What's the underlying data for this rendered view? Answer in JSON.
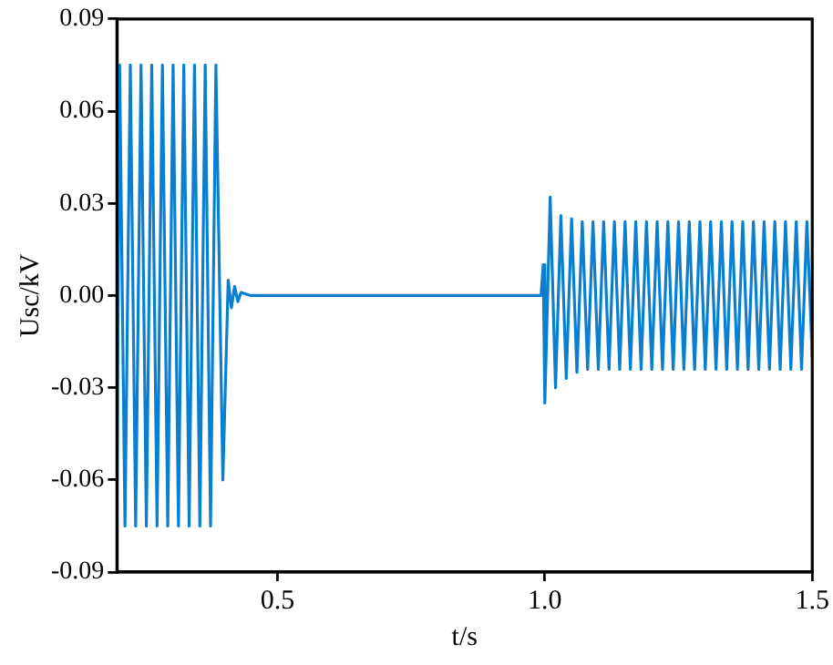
{
  "chart_data": {
    "type": "line",
    "xlabel": "t/s",
    "ylabel": "Usc/kV",
    "xlim": [
      0.2,
      1.5
    ],
    "xticks": [
      0.5,
      {
        "value": 1,
        "label": "1.0"
      },
      1.5
    ],
    "ylim": [
      -0.09,
      0.09
    ],
    "yticks": [
      -0.09,
      -0.06,
      -0.03,
      {
        "value": 0,
        "label": "0.00"
      },
      0.03,
      0.06,
      0.09
    ],
    "grid": false,
    "legend": false,
    "marker": "none",
    "line_style": "solid",
    "series": [
      {
        "color": "#0a7fd0",
        "x": [
          0.2,
          0.205,
          0.215,
          0.225,
          0.235,
          0.245,
          0.255,
          0.265,
          0.275,
          0.285,
          0.295,
          0.305,
          0.315,
          0.325,
          0.335,
          0.345,
          0.355,
          0.365,
          0.375,
          0.385,
          0.398,
          0.408,
          0.414,
          0.42,
          0.426,
          0.432,
          0.45,
          0.6,
          0.75,
          0.9,
          0.993,
          0.997,
          1.0,
          1.01,
          1.02,
          1.03,
          1.04,
          1.05,
          1.06,
          1.07,
          1.08,
          1.09,
          1.1,
          1.11,
          1.12,
          1.13,
          1.14,
          1.15,
          1.16,
          1.17,
          1.18,
          1.19,
          1.2,
          1.21,
          1.22,
          1.23,
          1.24,
          1.25,
          1.26,
          1.27,
          1.28,
          1.29,
          1.3,
          1.31,
          1.32,
          1.33,
          1.34,
          1.35,
          1.36,
          1.37,
          1.38,
          1.39,
          1.4,
          1.41,
          1.42,
          1.43,
          1.44,
          1.45,
          1.46,
          1.47,
          1.48,
          1.49,
          1.5
        ],
        "values": [
          -0.066,
          0.075,
          -0.075,
          0.075,
          -0.075,
          0.075,
          -0.075,
          0.075,
          -0.075,
          0.075,
          -0.075,
          0.075,
          -0.075,
          0.075,
          -0.075,
          0.075,
          -0.075,
          0.075,
          -0.075,
          0.075,
          -0.06,
          0.005,
          -0.004,
          0.003,
          -0.002,
          0.001,
          0,
          0,
          0,
          0,
          0,
          0.01,
          -0.035,
          0.032,
          -0.03,
          0.026,
          -0.027,
          0.025,
          -0.025,
          0.024,
          -0.024,
          0.024,
          -0.024,
          0.024,
          -0.024,
          0.024,
          -0.024,
          0.024,
          -0.024,
          0.024,
          -0.024,
          0.024,
          -0.024,
          0.024,
          -0.024,
          0.024,
          -0.024,
          0.024,
          -0.024,
          0.024,
          -0.024,
          0.024,
          -0.024,
          0.024,
          -0.024,
          0.024,
          -0.024,
          0.024,
          -0.024,
          0.024,
          -0.024,
          0.024,
          -0.024,
          0.024,
          -0.024,
          0.024,
          -0.024,
          0.024,
          -0.024,
          0.024,
          -0.024,
          0.024,
          -0.02
        ]
      }
    ]
  }
}
